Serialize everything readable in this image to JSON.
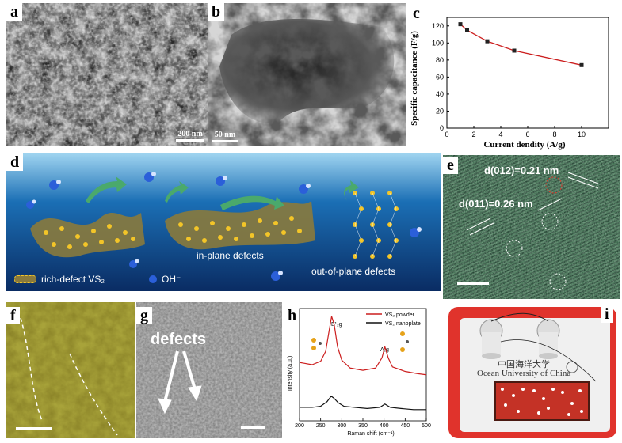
{
  "figure": {
    "panels": {
      "a": {
        "label": "a",
        "scale_bar": "200 nm"
      },
      "b": {
        "label": "b",
        "scale_bar": "50 nm"
      },
      "c": {
        "label": "c"
      },
      "d": {
        "label": "d",
        "legend_vs2": "rich-defect VS₂",
        "legend_oh": "OH⁻",
        "inplane": "in-plane defects",
        "outplane": "out-of-plane defects"
      },
      "e": {
        "label": "e",
        "d012": "d(012)=0.21 nm",
        "d011": "d(011)=0.26 nm"
      },
      "f": {
        "label": "f"
      },
      "g": {
        "label": "g",
        "defects": "defects"
      },
      "h": {
        "label": "h",
        "peak_e": "E¹₂g",
        "peak_a": "A₁g"
      },
      "i": {
        "label": "i",
        "chinese": "中国海洋大学",
        "english": "Ocean University of China"
      }
    }
  },
  "chart_data": [
    {
      "type": "line",
      "xlabel": "Current dendity (A/g)",
      "ylabel": "Specific capacitance (F/g)",
      "xlim": [
        0,
        12
      ],
      "ylim": [
        0,
        130
      ],
      "xticks": [
        0,
        2,
        4,
        6,
        8,
        10
      ],
      "yticks": [
        0,
        20,
        40,
        60,
        80,
        100,
        120
      ],
      "x": [
        1,
        1.5,
        3,
        5,
        10
      ],
      "y": [
        122,
        115,
        102,
        91,
        74
      ],
      "color": "#cc1f1f"
    },
    {
      "type": "line",
      "xlabel": "Raman shift (cm⁻¹)",
      "ylabel": "Intensity (a.u.)",
      "xlim": [
        200,
        500
      ],
      "xticks": [
        200,
        250,
        300,
        350,
        400,
        450,
        500
      ],
      "series": [
        {
          "name": "VS₂ powder",
          "color": "#cc1f1f",
          "x": [
            200,
            230,
            250,
            262,
            270,
            276,
            282,
            290,
            300,
            320,
            350,
            380,
            395,
            402,
            410,
            420,
            450,
            480,
            500
          ],
          "y": [
            5.2,
            5.0,
            5.3,
            6.2,
            8.0,
            9.3,
            8.6,
            6.6,
            5.4,
            4.7,
            4.5,
            4.7,
            5.6,
            6.6,
            5.6,
            4.8,
            4.4,
            4.2,
            4.1
          ]
        },
        {
          "name": "VS₂ nanoplate",
          "color": "#111111",
          "x": [
            200,
            230,
            250,
            265,
            275,
            282,
            292,
            305,
            330,
            360,
            390,
            402,
            415,
            440,
            470,
            500
          ],
          "y": [
            1.2,
            1.2,
            1.3,
            1.7,
            2.2,
            2.0,
            1.6,
            1.3,
            1.2,
            1.1,
            1.2,
            1.5,
            1.2,
            1.1,
            1.0,
            1.0
          ]
        }
      ]
    }
  ]
}
